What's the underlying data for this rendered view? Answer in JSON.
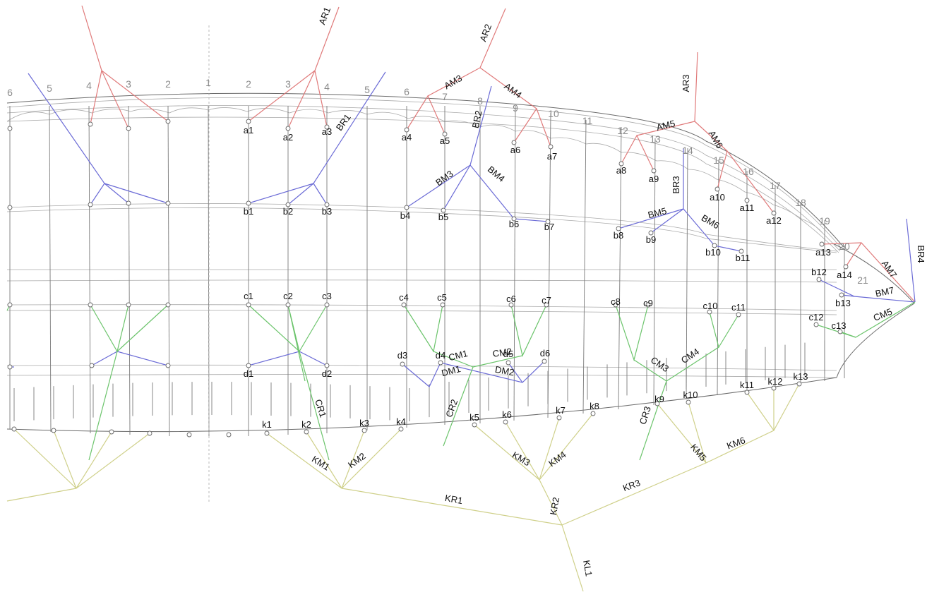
{
  "colors": {
    "group_a": "#e07a7a",
    "group_b": "#6b6bd6",
    "group_c": "#6cc46c",
    "group_k": "#cfd08a",
    "hull": "#6a6a6a",
    "station": "#8a8a8a"
  },
  "stations": [
    {
      "id": "s6L",
      "label": "6"
    },
    {
      "id": "s5L",
      "label": "5"
    },
    {
      "id": "s4L",
      "label": "4"
    },
    {
      "id": "s3L",
      "label": "3"
    },
    {
      "id": "s2L",
      "label": "2"
    },
    {
      "id": "s1",
      "label": "1"
    },
    {
      "id": "s2",
      "label": "2"
    },
    {
      "id": "s3",
      "label": "3"
    },
    {
      "id": "s4",
      "label": "4"
    },
    {
      "id": "s5",
      "label": "5"
    },
    {
      "id": "s6",
      "label": "6"
    },
    {
      "id": "s7",
      "label": "7"
    },
    {
      "id": "s8",
      "label": "8"
    },
    {
      "id": "s9",
      "label": "9"
    },
    {
      "id": "s10",
      "label": "10"
    },
    {
      "id": "s11",
      "label": "11"
    },
    {
      "id": "s12",
      "label": "12"
    },
    {
      "id": "s13",
      "label": "13"
    },
    {
      "id": "s14",
      "label": "14"
    },
    {
      "id": "s15",
      "label": "15"
    },
    {
      "id": "s16",
      "label": "16"
    },
    {
      "id": "s17",
      "label": "17"
    },
    {
      "id": "s18",
      "label": "18"
    },
    {
      "id": "s19",
      "label": "19"
    },
    {
      "id": "s20",
      "label": "20"
    },
    {
      "id": "s21",
      "label": "21"
    }
  ],
  "nodes": [
    {
      "id": "a1",
      "label": "a1"
    },
    {
      "id": "a2",
      "label": "a2"
    },
    {
      "id": "a3",
      "label": "a3"
    },
    {
      "id": "a4",
      "label": "a4"
    },
    {
      "id": "a5",
      "label": "a5"
    },
    {
      "id": "a6",
      "label": "a6"
    },
    {
      "id": "a7",
      "label": "a7"
    },
    {
      "id": "a8",
      "label": "a8"
    },
    {
      "id": "a9",
      "label": "a9"
    },
    {
      "id": "a10",
      "label": "a10"
    },
    {
      "id": "a11",
      "label": "a11"
    },
    {
      "id": "a12",
      "label": "a12"
    },
    {
      "id": "a13",
      "label": "a13"
    },
    {
      "id": "a14",
      "label": "a14"
    },
    {
      "id": "b1",
      "label": "b1"
    },
    {
      "id": "b2",
      "label": "b2"
    },
    {
      "id": "b3",
      "label": "b3"
    },
    {
      "id": "b4",
      "label": "b4"
    },
    {
      "id": "b5",
      "label": "b5"
    },
    {
      "id": "b6",
      "label": "b6"
    },
    {
      "id": "b7",
      "label": "b7"
    },
    {
      "id": "b8",
      "label": "b8"
    },
    {
      "id": "b9",
      "label": "b9"
    },
    {
      "id": "b10",
      "label": "b10"
    },
    {
      "id": "b11",
      "label": "b11"
    },
    {
      "id": "b12",
      "label": "b12"
    },
    {
      "id": "b13",
      "label": "b13"
    },
    {
      "id": "c1",
      "label": "c1"
    },
    {
      "id": "c2",
      "label": "c2"
    },
    {
      "id": "c3",
      "label": "c3"
    },
    {
      "id": "c4",
      "label": "c4"
    },
    {
      "id": "c5",
      "label": "c5"
    },
    {
      "id": "c6",
      "label": "c6"
    },
    {
      "id": "c7",
      "label": "c7"
    },
    {
      "id": "c8",
      "label": "c8"
    },
    {
      "id": "c9",
      "label": "c9"
    },
    {
      "id": "c10",
      "label": "c10"
    },
    {
      "id": "c11",
      "label": "c11"
    },
    {
      "id": "c12",
      "label": "c12"
    },
    {
      "id": "c13",
      "label": "c13"
    },
    {
      "id": "d1",
      "label": "d1"
    },
    {
      "id": "d2",
      "label": "d2"
    },
    {
      "id": "d3",
      "label": "d3"
    },
    {
      "id": "d4",
      "label": "d4"
    },
    {
      "id": "d5",
      "label": "d5"
    },
    {
      "id": "d6",
      "label": "d6"
    },
    {
      "id": "k1",
      "label": "k1"
    },
    {
      "id": "k2",
      "label": "k2"
    },
    {
      "id": "k3",
      "label": "k3"
    },
    {
      "id": "k4",
      "label": "k4"
    },
    {
      "id": "k5",
      "label": "k5"
    },
    {
      "id": "k6",
      "label": "k6"
    },
    {
      "id": "k7",
      "label": "k7"
    },
    {
      "id": "k8",
      "label": "k8"
    },
    {
      "id": "k9",
      "label": "k9"
    },
    {
      "id": "k10",
      "label": "k10"
    },
    {
      "id": "k11",
      "label": "k11"
    },
    {
      "id": "k12",
      "label": "k12"
    },
    {
      "id": "k13",
      "label": "k13"
    }
  ],
  "members": [
    {
      "id": "AR1",
      "label": "AR1",
      "group": "a"
    },
    {
      "id": "AR2",
      "label": "AR2",
      "group": "a"
    },
    {
      "id": "AR3",
      "label": "AR3",
      "group": "a"
    },
    {
      "id": "AM3",
      "label": "AM3",
      "group": "a"
    },
    {
      "id": "AM4",
      "label": "AM4",
      "group": "a"
    },
    {
      "id": "AM5",
      "label": "AM5",
      "group": "a"
    },
    {
      "id": "AM6",
      "label": "AM6",
      "group": "a"
    },
    {
      "id": "AM7",
      "label": "AM7",
      "group": "a"
    },
    {
      "id": "BR1",
      "label": "BR1",
      "group": "b"
    },
    {
      "id": "BR2",
      "label": "BR2",
      "group": "b"
    },
    {
      "id": "BR3",
      "label": "BR3",
      "group": "b"
    },
    {
      "id": "BR4",
      "label": "BR4",
      "group": "b"
    },
    {
      "id": "BM3",
      "label": "BM3",
      "group": "b"
    },
    {
      "id": "BM4",
      "label": "BM4",
      "group": "b"
    },
    {
      "id": "BM5",
      "label": "BM5",
      "group": "b"
    },
    {
      "id": "BM6",
      "label": "BM6",
      "group": "b"
    },
    {
      "id": "BM7",
      "label": "BM7",
      "group": "b"
    },
    {
      "id": "CR1",
      "label": "CR1",
      "group": "c"
    },
    {
      "id": "CR2",
      "label": "CR2",
      "group": "c"
    },
    {
      "id": "CR3",
      "label": "CR3",
      "group": "c"
    },
    {
      "id": "CM1",
      "label": "CM1",
      "group": "c"
    },
    {
      "id": "CM2",
      "label": "CM2",
      "group": "c"
    },
    {
      "id": "CM3",
      "label": "CM3",
      "group": "c"
    },
    {
      "id": "CM4",
      "label": "CM4",
      "group": "c"
    },
    {
      "id": "CM5",
      "label": "CM5",
      "group": "c"
    },
    {
      "id": "DM1",
      "label": "DM1",
      "group": "b"
    },
    {
      "id": "DM2",
      "label": "DM2",
      "group": "b"
    },
    {
      "id": "KM1",
      "label": "KM1",
      "group": "k"
    },
    {
      "id": "KM2",
      "label": "KM2",
      "group": "k"
    },
    {
      "id": "KM3",
      "label": "KM3",
      "group": "k"
    },
    {
      "id": "KM4",
      "label": "KM4",
      "group": "k"
    },
    {
      "id": "KM5",
      "label": "KM5",
      "group": "k"
    },
    {
      "id": "KM6",
      "label": "KM6",
      "group": "k"
    },
    {
      "id": "KR1",
      "label": "KR1",
      "group": "k"
    },
    {
      "id": "KR2",
      "label": "KR2",
      "group": "k"
    },
    {
      "id": "KR3",
      "label": "KR3",
      "group": "k"
    },
    {
      "id": "KL1",
      "label": "KL1",
      "group": "k"
    }
  ]
}
